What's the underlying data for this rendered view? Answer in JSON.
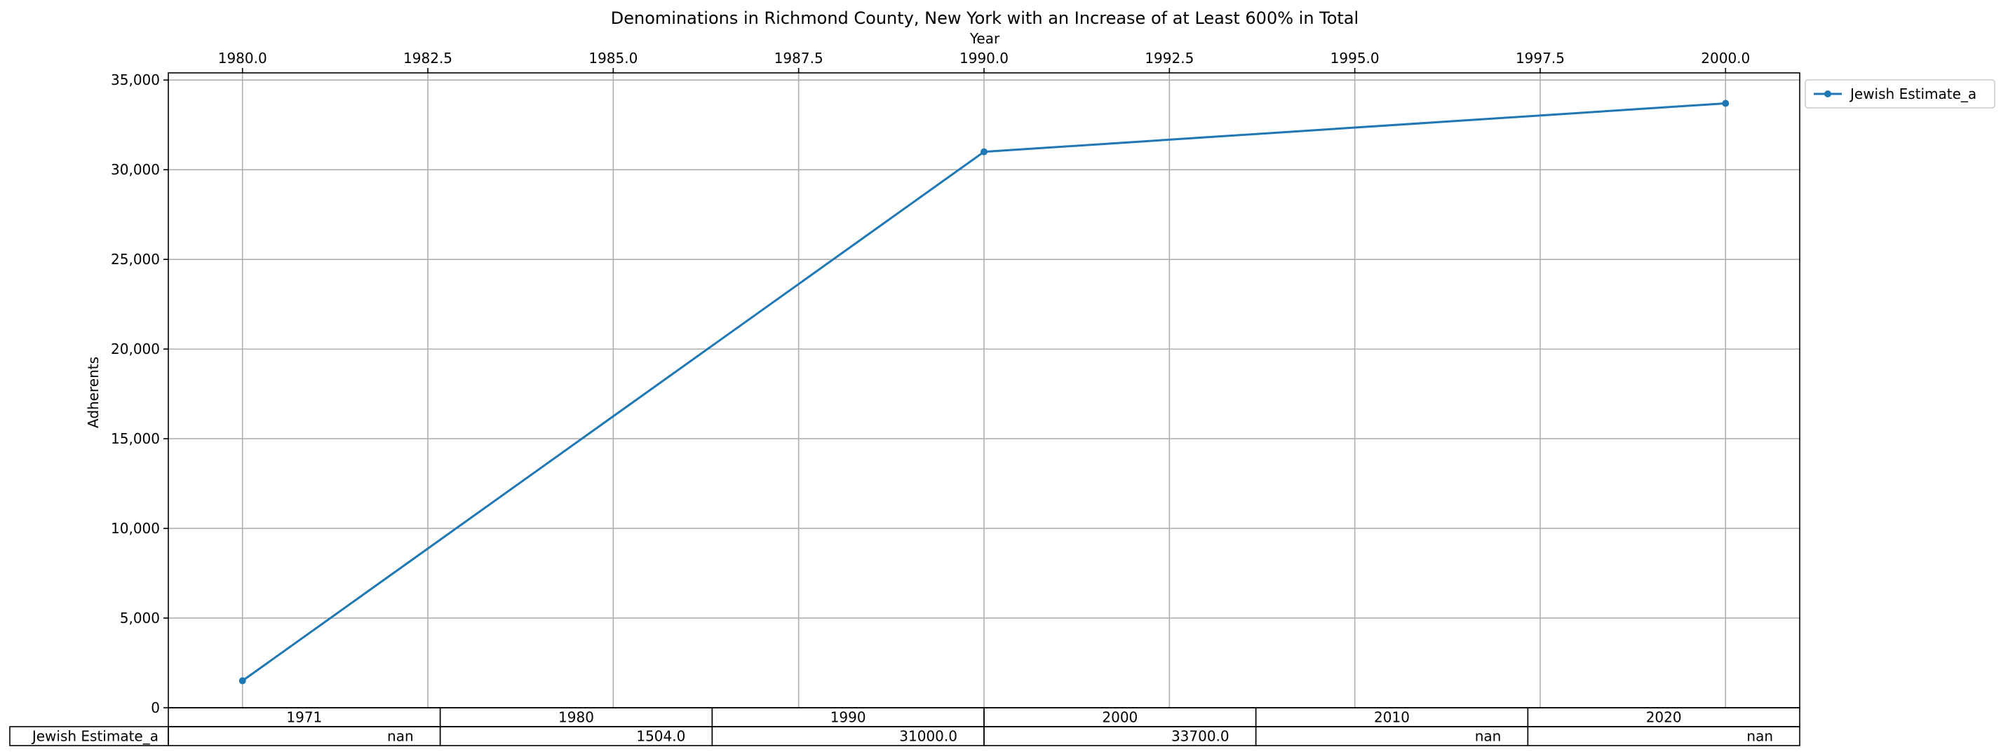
{
  "chart_data": {
    "type": "line",
    "title": "Denominations in Richmond County, New York with an Increase of at Least 600% in Total",
    "xlabel": "Year",
    "ylabel": "Adherents",
    "xlim": [
      1979,
      2001
    ],
    "ylim": [
      0,
      35400
    ],
    "x_ticks": [
      1980.0,
      1982.5,
      1985.0,
      1987.5,
      1990.0,
      1992.5,
      1995.0,
      1997.5,
      2000.0
    ],
    "x_tick_labels": [
      "1980.0",
      "1982.5",
      "1985.0",
      "1987.5",
      "1990.0",
      "1992.5",
      "1995.0",
      "1997.5",
      "2000.0"
    ],
    "y_ticks": [
      0,
      5000,
      10000,
      15000,
      20000,
      25000,
      30000,
      35000
    ],
    "y_tick_labels": [
      "0",
      "5,000",
      "10,000",
      "15,000",
      "20,000",
      "25,000",
      "30,000",
      "35,000"
    ],
    "x_axis_position": "top",
    "grid": true,
    "legend_position": "outside-top-right",
    "series": [
      {
        "name": "Jewish Estimate_a",
        "color": "#1f77b4",
        "marker": "circle",
        "x": [
          1980,
          1990,
          2000
        ],
        "y": [
          1504,
          31000,
          33700
        ]
      }
    ],
    "table": {
      "columns": [
        "1971",
        "1980",
        "1990",
        "2000",
        "2010",
        "2020"
      ],
      "rows": [
        {
          "label": "Jewish Estimate_a",
          "values": [
            "nan",
            "1504.0",
            "31000.0",
            "33700.0",
            "nan",
            "nan"
          ]
        }
      ]
    }
  }
}
